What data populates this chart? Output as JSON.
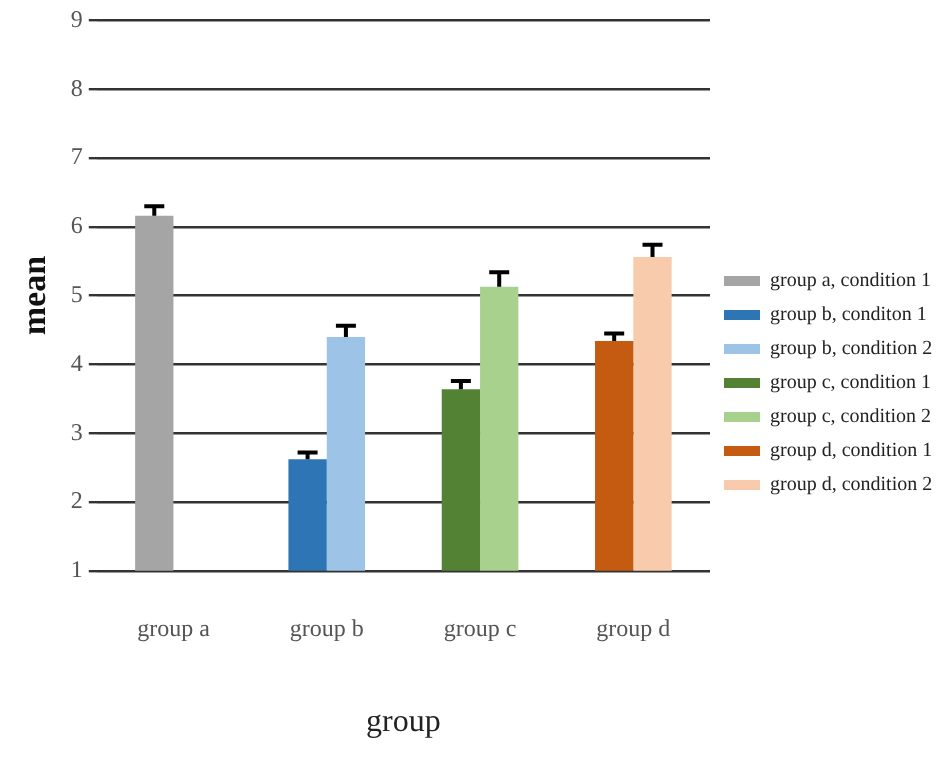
{
  "chart_data": {
    "type": "bar",
    "xlabel": "group",
    "ylabel": "mean",
    "categories": [
      "group a",
      "group b",
      "group c",
      "group d"
    ],
    "series": [
      {
        "name": "group a, condition 1",
        "color": "#a5a5a5",
        "values": [
          6.16,
          null,
          null,
          null
        ],
        "errors": [
          [
            6.16,
            6.3
          ],
          null,
          null,
          null
        ]
      },
      {
        "name": "group b, conditon 1",
        "color": "#2e75b6",
        "values": [
          null,
          2.62,
          null,
          null
        ],
        "errors": [
          null,
          [
            2.62,
            2.72
          ],
          null,
          null
        ]
      },
      {
        "name": "group b, condition 2",
        "color": "#9dc3e6",
        "values": [
          null,
          4.4,
          null,
          null
        ],
        "errors": [
          null,
          [
            4.4,
            4.56
          ],
          null,
          null
        ]
      },
      {
        "name": "group c, condition 1",
        "color": "#548235",
        "values": [
          null,
          null,
          3.64,
          null
        ],
        "errors": [
          null,
          null,
          [
            3.64,
            3.76
          ],
          null
        ]
      },
      {
        "name": "group c, condition 2",
        "color": "#a9d18e",
        "values": [
          null,
          null,
          5.13,
          null
        ],
        "errors": [
          null,
          null,
          [
            5.13,
            5.34
          ],
          null
        ]
      },
      {
        "name": "group d, condition 1",
        "color": "#c55a11",
        "values": [
          null,
          null,
          null,
          4.34
        ],
        "errors": [
          null,
          null,
          null,
          [
            4.34,
            4.45
          ]
        ]
      },
      {
        "name": "group d, condition 2",
        "color": "#f8cbad",
        "values": [
          null,
          null,
          null,
          5.56
        ],
        "errors": [
          null,
          null,
          null,
          [
            5.56,
            5.74
          ]
        ]
      }
    ],
    "ylim": [
      1,
      9
    ],
    "yticks": [
      1,
      2,
      3,
      4,
      5,
      6,
      7,
      8,
      9
    ],
    "grid": "y",
    "legend": "right"
  }
}
